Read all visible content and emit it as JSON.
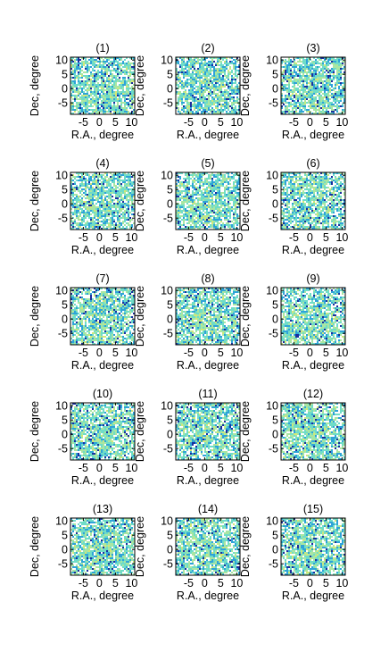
{
  "figure": {
    "background": "#ffffff",
    "colormap": [
      "#1a2f9e",
      "#2ea3d8",
      "#6fdcc8",
      "#a9e6a2",
      "#d4e876"
    ]
  },
  "chart_data": [
    {
      "type": "heatmap",
      "title": "(1)",
      "xlabel": "R.A., degree",
      "ylabel": "Dec, degree",
      "xlim": [
        -9,
        11
      ],
      "ylim": [
        -9,
        11
      ],
      "xticks": [
        -5,
        0,
        5,
        10
      ],
      "yticks": [
        -5,
        0,
        5,
        10
      ]
    },
    {
      "type": "heatmap",
      "title": "(2)",
      "xlabel": "R.A., degree",
      "ylabel": "Dec, degree",
      "xlim": [
        -9,
        11
      ],
      "ylim": [
        -9,
        11
      ],
      "xticks": [
        -5,
        0,
        5,
        10
      ],
      "yticks": [
        -5,
        0,
        5,
        10
      ]
    },
    {
      "type": "heatmap",
      "title": "(3)",
      "xlabel": "R.A., degree",
      "ylabel": "Dec, degree",
      "xlim": [
        -9,
        11
      ],
      "ylim": [
        -9,
        11
      ],
      "xticks": [
        -5,
        0,
        5,
        10
      ],
      "yticks": [
        -5,
        0,
        5,
        10
      ]
    },
    {
      "type": "heatmap",
      "title": "(4)",
      "xlabel": "R.A., degree",
      "ylabel": "Dec, degree",
      "xlim": [
        -9,
        11
      ],
      "ylim": [
        -9,
        11
      ],
      "xticks": [
        -5,
        0,
        5,
        10
      ],
      "yticks": [
        -5,
        0,
        5,
        10
      ]
    },
    {
      "type": "heatmap",
      "title": "(5)",
      "xlabel": "R.A., degree",
      "ylabel": "Dec, degree",
      "xlim": [
        -9,
        11
      ],
      "ylim": [
        -9,
        11
      ],
      "xticks": [
        -5,
        0,
        5,
        10
      ],
      "yticks": [
        -5,
        0,
        5,
        10
      ]
    },
    {
      "type": "heatmap",
      "title": "(6)",
      "xlabel": "R.A., degree",
      "ylabel": "Dec, degree",
      "xlim": [
        -9,
        11
      ],
      "ylim": [
        -9,
        11
      ],
      "xticks": [
        -5,
        0,
        5,
        10
      ],
      "yticks": [
        -5,
        0,
        5,
        10
      ]
    },
    {
      "type": "heatmap",
      "title": "(7)",
      "xlabel": "R.A., degree",
      "ylabel": "Dec, degree",
      "xlim": [
        -9,
        11
      ],
      "ylim": [
        -9,
        11
      ],
      "xticks": [
        -5,
        0,
        5,
        10
      ],
      "yticks": [
        -5,
        0,
        5,
        10
      ]
    },
    {
      "type": "heatmap",
      "title": "(8)",
      "xlabel": "R.A., degree",
      "ylabel": "Dec, degree",
      "xlim": [
        -9,
        11
      ],
      "ylim": [
        -9,
        11
      ],
      "xticks": [
        -5,
        0,
        5,
        10
      ],
      "yticks": [
        -5,
        0,
        5,
        10
      ]
    },
    {
      "type": "heatmap",
      "title": "(9)",
      "xlabel": "R.A., degree",
      "ylabel": "Dec, degree",
      "xlim": [
        -9,
        11
      ],
      "ylim": [
        -9,
        11
      ],
      "xticks": [
        -5,
        0,
        5,
        10
      ],
      "yticks": [
        -5,
        0,
        5,
        10
      ]
    },
    {
      "type": "heatmap",
      "title": "(10)",
      "xlabel": "R.A., degree",
      "ylabel": "Dec, degree",
      "xlim": [
        -9,
        11
      ],
      "ylim": [
        -9,
        11
      ],
      "xticks": [
        -5,
        0,
        5,
        10
      ],
      "yticks": [
        -5,
        0,
        5,
        10
      ]
    },
    {
      "type": "heatmap",
      "title": "(11)",
      "xlabel": "R.A., degree",
      "ylabel": "Dec, degree",
      "xlim": [
        -9,
        11
      ],
      "ylim": [
        -9,
        11
      ],
      "xticks": [
        -5,
        0,
        5,
        10
      ],
      "yticks": [
        -5,
        0,
        5,
        10
      ]
    },
    {
      "type": "heatmap",
      "title": "(12)",
      "xlabel": "R.A., degree",
      "ylabel": "Dec, degree",
      "xlim": [
        -9,
        11
      ],
      "ylim": [
        -9,
        11
      ],
      "xticks": [
        -5,
        0,
        5,
        10
      ],
      "yticks": [
        -5,
        0,
        5,
        10
      ]
    },
    {
      "type": "heatmap",
      "title": "(13)",
      "xlabel": "R.A., degree",
      "ylabel": "Dec, degree",
      "xlim": [
        -9,
        11
      ],
      "ylim": [
        -9,
        11
      ],
      "xticks": [
        -5,
        0,
        5,
        10
      ],
      "yticks": [
        -5,
        0,
        5,
        10
      ]
    },
    {
      "type": "heatmap",
      "title": "(14)",
      "xlabel": "R.A., degree",
      "ylabel": "Dec, degree",
      "xlim": [
        -9,
        11
      ],
      "ylim": [
        -9,
        11
      ],
      "xticks": [
        -5,
        0,
        5,
        10
      ],
      "yticks": [
        -5,
        0,
        5,
        10
      ]
    },
    {
      "type": "heatmap",
      "title": "(15)",
      "xlabel": "R.A., degree",
      "ylabel": "Dec, degree",
      "xlim": [
        -9,
        11
      ],
      "ylim": [
        -9,
        11
      ],
      "xticks": [
        -5,
        0,
        5,
        10
      ],
      "yticks": [
        -5,
        0,
        5,
        10
      ]
    }
  ]
}
